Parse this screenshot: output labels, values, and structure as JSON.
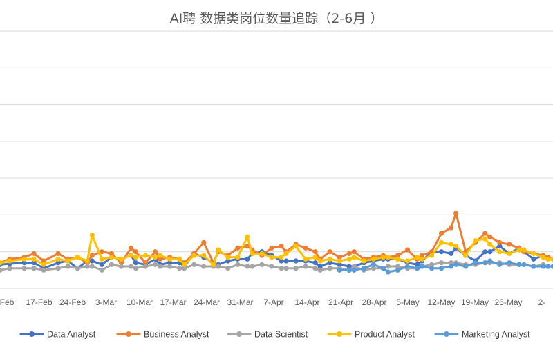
{
  "chart_data": {
    "type": "line",
    "title": "AI聘 数据类岗位数量追踪（2-6月 ）",
    "xlabel": "",
    "ylabel": "",
    "ylim": [
      0,
      140
    ],
    "grid": true,
    "legend_position": "bottom",
    "x_ticks": [
      "-Feb",
      "17-Feb",
      "24-Feb",
      "3-Mar",
      "10-Mar",
      "17-Mar",
      "24-Mar",
      "31-Mar",
      "7-Apr",
      "14-Apr",
      "21-Apr",
      "28-Apr",
      "5-May",
      "12-May",
      "19-May",
      "26-May",
      "2-"
    ],
    "x": [
      0,
      2,
      5,
      7,
      9,
      12,
      14,
      16,
      18,
      19,
      21,
      23,
      25,
      27,
      28,
      30,
      32,
      33,
      35,
      37,
      38,
      40,
      42,
      44,
      45,
      47,
      49,
      51,
      52,
      54,
      56,
      58,
      59,
      61,
      63,
      65,
      66,
      68,
      70,
      72,
      73,
      75,
      77,
      79,
      80,
      82,
      84,
      86,
      87,
      89,
      91,
      93,
      94,
      96,
      98,
      100,
      101,
      103,
      105,
      107,
      108,
      110,
      112,
      113,
      114
    ],
    "series": [
      {
        "name": "Data Analyst",
        "color": "#4472c4",
        "values": [
          13,
          13.5,
          14,
          14,
          11,
          14,
          15,
          11,
          15,
          15,
          13,
          17,
          16,
          18,
          14,
          13,
          16,
          13,
          14,
          14,
          12,
          19,
          17,
          14,
          13,
          15,
          16,
          16,
          19,
          20,
          18,
          15,
          15,
          15,
          15,
          14,
          12,
          14,
          13,
          12,
          12,
          14,
          15,
          16,
          16,
          16,
          14,
          13,
          15,
          20,
          20,
          19,
          22,
          18,
          15,
          20,
          20,
          23,
          19,
          22,
          20,
          16,
          18,
          17,
          16
        ]
      },
      {
        "name": "Business Analyst",
        "color": "#ed7d31",
        "values": [
          14,
          16,
          17,
          19,
          15,
          19,
          16,
          17,
          14,
          18,
          20,
          19,
          14,
          22,
          20,
          14,
          20,
          16,
          17,
          16,
          14,
          19,
          25,
          14,
          20,
          18,
          22,
          23,
          21,
          18,
          22,
          23,
          20,
          24,
          22,
          20,
          16,
          20,
          17,
          19,
          20,
          16,
          17,
          18,
          17,
          18,
          21,
          16,
          18,
          20,
          30,
          33,
          41,
          20,
          25,
          30,
          28,
          25,
          24,
          22,
          20,
          19,
          18,
          17,
          16
        ]
      },
      {
        "name": "Data Scientist",
        "color": "#a5a5a5",
        "values": [
          10,
          11,
          11,
          11,
          10,
          11,
          12,
          11,
          12,
          12,
          10,
          13,
          12,
          12,
          11,
          12,
          13,
          12,
          12,
          11,
          11,
          13,
          12,
          12,
          12,
          11,
          13,
          12,
          12,
          13,
          12,
          11,
          11,
          11,
          12,
          11,
          10,
          11,
          11,
          10,
          12,
          10,
          11,
          11,
          12,
          12,
          11,
          11,
          12,
          13,
          14,
          14,
          14,
          13,
          13,
          14,
          14,
          14,
          13,
          13,
          13,
          12,
          13,
          12,
          12
        ]
      },
      {
        "name": "Product Analyst",
        "color": "#ffc000",
        "values": [
          14,
          15,
          16,
          16,
          13,
          16,
          15,
          17,
          15,
          29,
          16,
          17,
          16,
          18,
          17,
          18,
          17,
          18,
          16,
          16,
          13,
          18,
          18,
          13,
          21,
          17,
          17,
          28,
          19,
          19,
          17,
          17,
          19,
          23,
          16,
          17,
          15,
          16,
          15,
          16,
          17,
          15,
          16,
          17,
          17,
          16,
          15,
          17,
          16,
          18,
          25,
          24,
          23,
          18,
          26,
          27,
          24,
          20,
          19,
          21,
          21,
          19,
          17,
          16,
          16
        ]
      },
      {
        "name": "Marketing Analyst",
        "color": "#5b9bd5",
        "values": [
          null,
          null,
          null,
          null,
          null,
          null,
          null,
          null,
          null,
          null,
          null,
          null,
          null,
          null,
          null,
          null,
          null,
          null,
          null,
          null,
          null,
          null,
          null,
          null,
          null,
          null,
          null,
          null,
          null,
          null,
          null,
          null,
          null,
          null,
          null,
          null,
          null,
          null,
          10,
          10,
          10,
          11,
          13,
          11,
          9,
          10,
          12,
          11,
          12,
          11,
          11,
          12,
          13,
          12,
          14,
          14,
          15,
          13,
          14,
          13,
          13,
          12,
          12,
          12,
          12
        ]
      }
    ]
  }
}
